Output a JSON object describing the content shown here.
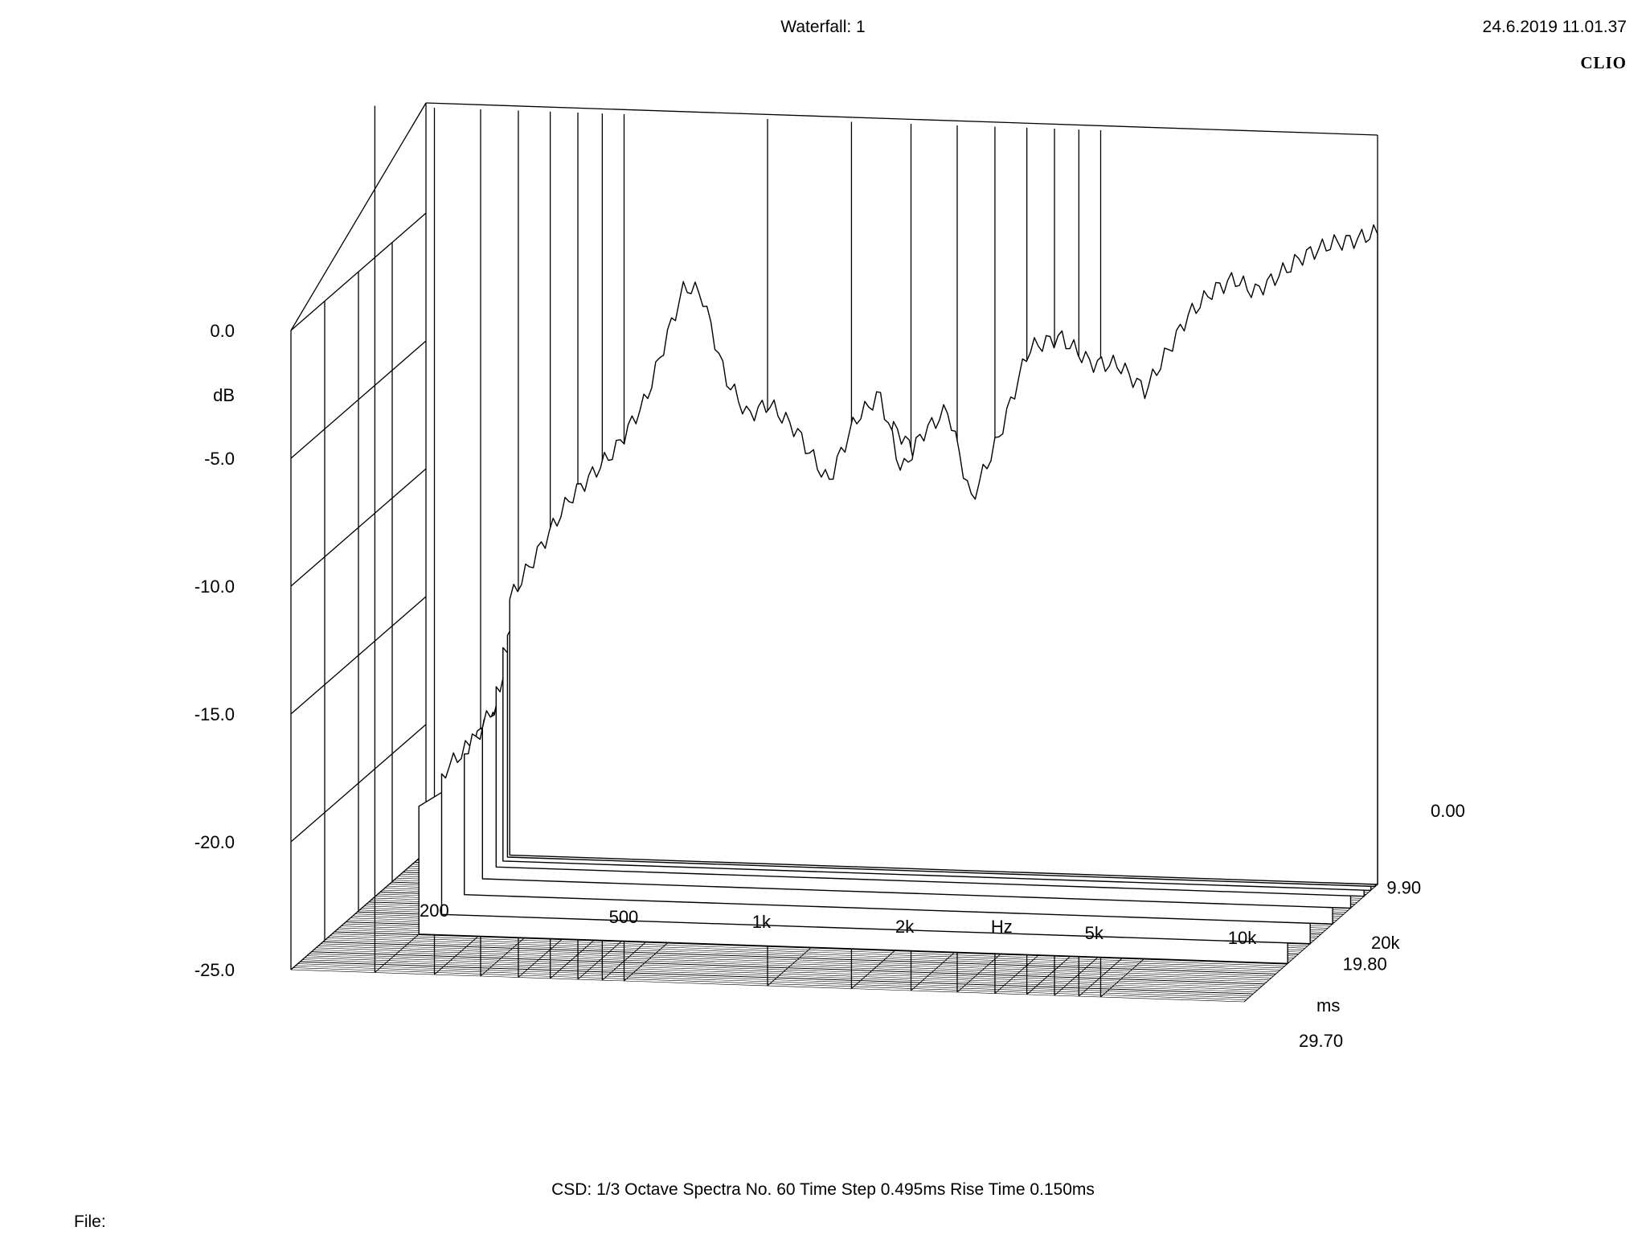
{
  "header": {
    "title": "Waterfall: 1",
    "timestamp": "24.6.2019 11.01.37",
    "brand": "CLIO"
  },
  "footer": {
    "settings": "CSD:   1/3 Octave   Spectra No. 60   Time Step 0.495ms   Rise Time 0.150ms",
    "file_label": "File:"
  },
  "chart_data": {
    "type": "waterfall",
    "title": "Waterfall: 1",
    "y_axis": {
      "label": "dB",
      "ticks": [
        "0.0",
        "-5.0",
        "-10.0",
        "-15.0",
        "-20.0",
        "-25.0"
      ],
      "range": [
        -25,
        0
      ]
    },
    "x_axis": {
      "label": "Hz",
      "scale": "log",
      "range": [
        200,
        20000
      ],
      "ticks": [
        {
          "value": 200,
          "label": "200"
        },
        {
          "value": 500,
          "label": "500"
        },
        {
          "value": 1000,
          "label": "1k"
        },
        {
          "value": 2000,
          "label": "2k"
        },
        {
          "value": 5000,
          "label": "5k"
        },
        {
          "value": 10000,
          "label": "10k"
        },
        {
          "value": 20000,
          "label": "20k"
        }
      ]
    },
    "z_axis": {
      "label": "ms",
      "range": [
        0,
        29.7
      ],
      "ticks": [
        "0.00",
        "9.90",
        "19.80",
        "29.70"
      ]
    },
    "spectra_count": 60,
    "time_step_ms": 0.495,
    "grid": true,
    "series": [
      {
        "time_ms": 0.0,
        "points": [
          [
            300,
            -15
          ],
          [
            400,
            -11
          ],
          [
            500,
            -9
          ],
          [
            580,
            -7
          ],
          [
            650,
            -4.2
          ],
          [
            700,
            -2.5
          ],
          [
            760,
            -2.8
          ],
          [
            850,
            -6
          ],
          [
            950,
            -7.5
          ],
          [
            1050,
            -7
          ],
          [
            1200,
            -8
          ],
          [
            1400,
            -10
          ],
          [
            1600,
            -7.5
          ],
          [
            1800,
            -6.5
          ],
          [
            2000,
            -9.5
          ],
          [
            2200,
            -8
          ],
          [
            2500,
            -7
          ],
          [
            2800,
            -10.5
          ],
          [
            3200,
            -8
          ],
          [
            3700,
            -4.5
          ],
          [
            4300,
            -4
          ],
          [
            5000,
            -5
          ],
          [
            5700,
            -5
          ],
          [
            6500,
            -6
          ],
          [
            7200,
            -4.5
          ],
          [
            8000,
            -3
          ],
          [
            9000,
            -2
          ],
          [
            10000,
            -1.5
          ],
          [
            11000,
            -2
          ],
          [
            12000,
            -1.5
          ],
          [
            14000,
            -0.5
          ],
          [
            16000,
            0
          ],
          [
            18000,
            0.2
          ],
          [
            20000,
            0.5
          ]
        ]
      },
      {
        "time_ms": 0.5,
        "points": [
          [
            300,
            -16.5
          ],
          [
            400,
            -13
          ],
          [
            500,
            -10
          ],
          [
            580,
            -8.5
          ],
          [
            650,
            -6
          ],
          [
            700,
            -3.5
          ],
          [
            760,
            -4
          ],
          [
            850,
            -7
          ],
          [
            950,
            -8.5
          ],
          [
            1050,
            -8
          ],
          [
            1200,
            -9
          ],
          [
            1400,
            -11.5
          ],
          [
            1600,
            -8.5
          ],
          [
            1800,
            -8
          ],
          [
            2000,
            -11
          ],
          [
            2200,
            -9
          ],
          [
            2500,
            -8.5
          ],
          [
            2800,
            -11.5
          ],
          [
            3200,
            -9.5
          ],
          [
            3700,
            -8
          ],
          [
            4300,
            -8
          ],
          [
            5000,
            -10
          ],
          [
            5700,
            -9
          ],
          [
            6500,
            -9.5
          ],
          [
            7200,
            -9
          ],
          [
            8000,
            -8.5
          ],
          [
            9000,
            -7
          ],
          [
            10000,
            -6.5
          ],
          [
            11000,
            -7.5
          ],
          [
            12000,
            -6.5
          ],
          [
            14000,
            -8
          ],
          [
            16000,
            -7
          ],
          [
            18000,
            -9
          ],
          [
            20000,
            -9.5
          ]
        ]
      },
      {
        "time_ms": 1.5,
        "points": [
          [
            300,
            -17
          ],
          [
            400,
            -13
          ],
          [
            500,
            -14
          ],
          [
            580,
            -12
          ],
          [
            650,
            -7.5
          ],
          [
            700,
            -5
          ],
          [
            760,
            -7
          ],
          [
            850,
            -9.5
          ],
          [
            950,
            -13
          ],
          [
            1050,
            -12
          ],
          [
            1200,
            -12.5
          ],
          [
            1400,
            -11.5
          ],
          [
            1600,
            -9.5
          ],
          [
            1800,
            -9
          ],
          [
            2000,
            -7.5
          ],
          [
            2200,
            -8.5
          ],
          [
            2500,
            -8
          ],
          [
            2800,
            -10.5
          ],
          [
            3200,
            -15
          ],
          [
            3700,
            -17
          ],
          [
            4300,
            -16.5
          ],
          [
            5000,
            -16
          ],
          [
            5700,
            -15
          ],
          [
            6500,
            -16.5
          ],
          [
            7200,
            -15.5
          ],
          [
            8000,
            -14.5
          ],
          [
            9000,
            -15
          ],
          [
            10000,
            -16
          ],
          [
            11000,
            -16.5
          ],
          [
            12000,
            -16
          ],
          [
            14000,
            -17
          ],
          [
            16000,
            -18
          ],
          [
            18000,
            -19
          ],
          [
            20000,
            -21
          ]
        ]
      },
      {
        "time_ms": 3.0,
        "points": [
          [
            300,
            -18
          ],
          [
            400,
            -15
          ],
          [
            500,
            -13
          ],
          [
            580,
            -11
          ],
          [
            650,
            -9
          ],
          [
            700,
            -8.5
          ],
          [
            760,
            -10
          ],
          [
            850,
            -12.5
          ],
          [
            950,
            -16
          ],
          [
            1050,
            -16.5
          ],
          [
            1200,
            -15
          ],
          [
            1400,
            -12.5
          ],
          [
            1600,
            -10.5
          ],
          [
            1800,
            -10
          ],
          [
            2000,
            -11
          ],
          [
            2200,
            -10
          ],
          [
            2500,
            -11
          ],
          [
            2800,
            -14
          ],
          [
            3200,
            -18
          ],
          [
            3700,
            -19
          ],
          [
            4300,
            -19
          ],
          [
            5000,
            -19
          ],
          [
            5700,
            -19
          ],
          [
            6500,
            -19
          ],
          [
            7200,
            -19
          ],
          [
            8000,
            -19
          ],
          [
            9000,
            -19
          ],
          [
            10000,
            -18
          ],
          [
            11000,
            -17
          ],
          [
            12000,
            -16
          ],
          [
            14000,
            -17.5
          ],
          [
            16000,
            -19
          ],
          [
            18000,
            -19
          ],
          [
            20000,
            -19
          ]
        ]
      },
      {
        "time_ms": 6.0,
        "points": [
          [
            300,
            -19
          ],
          [
            400,
            -15.5
          ],
          [
            500,
            -14
          ],
          [
            580,
            -16
          ],
          [
            650,
            -13.5
          ],
          [
            700,
            -12
          ],
          [
            760,
            -13
          ],
          [
            850,
            -16
          ],
          [
            950,
            -18.5
          ],
          [
            1050,
            -19
          ],
          [
            1200,
            -18
          ],
          [
            1400,
            -15
          ],
          [
            1600,
            -13.5
          ],
          [
            1800,
            -12
          ],
          [
            2000,
            -13
          ],
          [
            2200,
            -12.5
          ],
          [
            2500,
            -14
          ],
          [
            2800,
            -17
          ],
          [
            3200,
            -19.5
          ],
          [
            3700,
            -20
          ],
          [
            4300,
            -20
          ],
          [
            5000,
            -20
          ],
          [
            5700,
            -20
          ],
          [
            6500,
            -20
          ],
          [
            7200,
            -20
          ],
          [
            8000,
            -20
          ],
          [
            9000,
            -20
          ],
          [
            10000,
            -19
          ],
          [
            11000,
            -17.5
          ],
          [
            12000,
            -17
          ],
          [
            14000,
            -18.5
          ],
          [
            16000,
            -20
          ],
          [
            18000,
            -20
          ],
          [
            20000,
            -20
          ]
        ]
      },
      {
        "time_ms": 10.0,
        "points": [
          [
            300,
            -19.5
          ],
          [
            400,
            -16
          ],
          [
            500,
            -17.5
          ],
          [
            580,
            -18.5
          ],
          [
            650,
            -15.5
          ],
          [
            700,
            -14.5
          ],
          [
            760,
            -16.5
          ],
          [
            850,
            -19
          ],
          [
            950,
            -20
          ],
          [
            1050,
            -20
          ],
          [
            1200,
            -19.5
          ],
          [
            1400,
            -17.5
          ],
          [
            1600,
            -15.5
          ],
          [
            1800,
            -15
          ],
          [
            2000,
            -16
          ],
          [
            2200,
            -16.5
          ],
          [
            2500,
            -18
          ],
          [
            2800,
            -19.5
          ],
          [
            3200,
            -20
          ],
          [
            3700,
            -20
          ],
          [
            4300,
            -20
          ],
          [
            5000,
            -20
          ],
          [
            5700,
            -20
          ],
          [
            6500,
            -20
          ],
          [
            7200,
            -20
          ],
          [
            8000,
            -20
          ],
          [
            9000,
            -20
          ],
          [
            10000,
            -19.5
          ],
          [
            11000,
            -18.5
          ],
          [
            12000,
            -18
          ],
          [
            14000,
            -19.5
          ],
          [
            16000,
            -20
          ],
          [
            18000,
            -20
          ],
          [
            20000,
            -20
          ]
        ]
      },
      {
        "time_ms": 15.0,
        "points": [
          [
            300,
            -19.5
          ],
          [
            400,
            -17
          ],
          [
            500,
            -19.5
          ],
          [
            580,
            -20
          ],
          [
            650,
            -17.5
          ],
          [
            700,
            -17
          ],
          [
            760,
            -18.5
          ],
          [
            850,
            -20
          ],
          [
            950,
            -20
          ],
          [
            1050,
            -20
          ],
          [
            1200,
            -20
          ],
          [
            1400,
            -19
          ],
          [
            1600,
            -17.5
          ],
          [
            1800,
            -17.5
          ],
          [
            2000,
            -18.5
          ],
          [
            2200,
            -19
          ],
          [
            2500,
            -20
          ],
          [
            2800,
            -20
          ],
          [
            3200,
            -20
          ],
          [
            3700,
            -20
          ],
          [
            4300,
            -20
          ],
          [
            5000,
            -20
          ],
          [
            5700,
            -20
          ],
          [
            6500,
            -20
          ],
          [
            7200,
            -20
          ],
          [
            8000,
            -20
          ],
          [
            9000,
            -20
          ],
          [
            10000,
            -20
          ],
          [
            11000,
            -19.5
          ],
          [
            12000,
            -19
          ],
          [
            14000,
            -20
          ],
          [
            16000,
            -20
          ],
          [
            18000,
            -20
          ],
          [
            20000,
            -20
          ]
        ]
      },
      {
        "time_ms": 20.0,
        "points": [
          [
            300,
            -20
          ],
          [
            400,
            -18.5
          ],
          [
            500,
            -20
          ],
          [
            580,
            -20
          ],
          [
            650,
            -19
          ],
          [
            700,
            -19
          ],
          [
            760,
            -19.5
          ],
          [
            850,
            -20
          ],
          [
            950,
            -20
          ],
          [
            1050,
            -20
          ],
          [
            1200,
            -20
          ],
          [
            1400,
            -20
          ],
          [
            1600,
            -19.5
          ],
          [
            1800,
            -19.5
          ],
          [
            2000,
            -20
          ],
          [
            2200,
            -20
          ],
          [
            2500,
            -20
          ],
          [
            2800,
            -20
          ],
          [
            3200,
            -20
          ],
          [
            3700,
            -20
          ],
          [
            4300,
            -20
          ],
          [
            5000,
            -20
          ],
          [
            5700,
            -20
          ],
          [
            6500,
            -20
          ],
          [
            7200,
            -20
          ],
          [
            8000,
            -20
          ],
          [
            9000,
            -20
          ],
          [
            10000,
            -20
          ],
          [
            11000,
            -20
          ],
          [
            12000,
            -20
          ],
          [
            14000,
            -20
          ],
          [
            16000,
            -20
          ],
          [
            18000,
            -20
          ],
          [
            20000,
            -20
          ]
        ]
      }
    ]
  }
}
